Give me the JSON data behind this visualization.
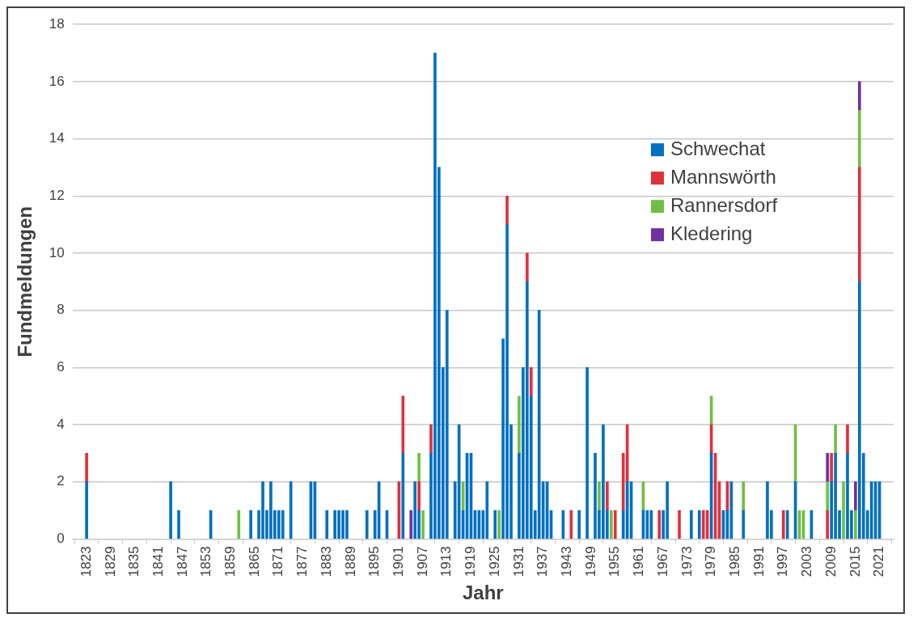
{
  "chart_data": {
    "type": "bar",
    "stacked": true,
    "xlabel": "Jahr",
    "ylabel": "Fundmeldungen",
    "xlim": [
      1822.5,
      2021.5
    ],
    "xticks": [
      1823,
      1829,
      1835,
      1841,
      1847,
      1853,
      1859,
      1865,
      1871,
      1877,
      1883,
      1889,
      1895,
      1901,
      1907,
      1913,
      1919,
      1925,
      1931,
      1937,
      1943,
      1949,
      1955,
      1961,
      1967,
      1973,
      1979,
      1985,
      1991,
      1997,
      2003,
      2009,
      2015,
      2021
    ],
    "ylim": [
      0,
      18
    ],
    "yticks": [
      0,
      2,
      4,
      6,
      8,
      10,
      12,
      14,
      16,
      18
    ],
    "grid": "y",
    "legend": "top right",
    "x": [
      1823,
      1844,
      1846,
      1854,
      1861,
      1864,
      1866,
      1867,
      1868,
      1869,
      1870,
      1871,
      1872,
      1874,
      1879,
      1880,
      1883,
      1885,
      1886,
      1887,
      1888,
      1893,
      1895,
      1896,
      1898,
      1901,
      1902,
      1904,
      1905,
      1906,
      1907,
      1909,
      1910,
      1911,
      1912,
      1913,
      1915,
      1916,
      1917,
      1918,
      1919,
      1920,
      1921,
      1922,
      1923,
      1925,
      1926,
      1927,
      1928,
      1929,
      1931,
      1932,
      1933,
      1934,
      1935,
      1936,
      1937,
      1938,
      1939,
      1942,
      1944,
      1946,
      1948,
      1950,
      1951,
      1952,
      1953,
      1954,
      1955,
      1957,
      1958,
      1959,
      1962,
      1963,
      1964,
      1966,
      1967,
      1968,
      1971,
      1974,
      1976,
      1977,
      1978,
      1979,
      1980,
      1981,
      1982,
      1983,
      1984,
      1987,
      1993,
      1994,
      1997,
      1998,
      2000,
      2001,
      2002,
      2004,
      2008,
      2009,
      2010,
      2011,
      2012,
      2013,
      2014,
      2015,
      2016,
      2017,
      2018,
      2019,
      2020,
      2021
    ],
    "series": [
      {
        "name": "Schwechat",
        "color": "#0070c0",
        "values": [
          2,
          2,
          1,
          1,
          null,
          1,
          1,
          2,
          1,
          2,
          1,
          1,
          1,
          2,
          2,
          2,
          1,
          1,
          1,
          1,
          1,
          1,
          1,
          2,
          1,
          null,
          3,
          null,
          2,
          1,
          null,
          3,
          17,
          13,
          6,
          8,
          2,
          4,
          1,
          3,
          3,
          1,
          1,
          1,
          2,
          1,
          null,
          7,
          11,
          4,
          3,
          6,
          9,
          5,
          1,
          8,
          2,
          2,
          1,
          1,
          null,
          1,
          6,
          3,
          1,
          4,
          1,
          null,
          null,
          1,
          2,
          2,
          1,
          1,
          1,
          null,
          1,
          2,
          null,
          1,
          1,
          null,
          null,
          3,
          null,
          null,
          1,
          1,
          2,
          1,
          2,
          1,
          null,
          1,
          2,
          null,
          null,
          1,
          null,
          2,
          3,
          1,
          null,
          3,
          1,
          null,
          9,
          3,
          1,
          2,
          2,
          2
        ]
      },
      {
        "name": "Mannswörth",
        "color": "#e0303c",
        "values": [
          1,
          null,
          null,
          null,
          null,
          null,
          null,
          null,
          null,
          null,
          null,
          null,
          null,
          null,
          null,
          null,
          null,
          null,
          null,
          null,
          null,
          null,
          null,
          null,
          null,
          2,
          2,
          null,
          null,
          1,
          null,
          1,
          null,
          null,
          null,
          null,
          null,
          null,
          null,
          null,
          null,
          null,
          null,
          null,
          null,
          null,
          null,
          null,
          1,
          null,
          null,
          null,
          1,
          1,
          null,
          null,
          null,
          null,
          null,
          null,
          1,
          null,
          null,
          null,
          null,
          null,
          1,
          null,
          1,
          2,
          2,
          null,
          null,
          null,
          null,
          1,
          null,
          null,
          1,
          null,
          null,
          1,
          1,
          1,
          3,
          2,
          null,
          1,
          null,
          null,
          null,
          null,
          1,
          null,
          null,
          null,
          null,
          null,
          1,
          1,
          null,
          null,
          null,
          1,
          null,
          null,
          4,
          null,
          null,
          null,
          null,
          null
        ]
      },
      {
        "name": "Rannersdorf",
        "color": "#70bf44",
        "values": [
          null,
          null,
          null,
          null,
          1,
          null,
          null,
          null,
          null,
          null,
          null,
          null,
          null,
          null,
          null,
          null,
          null,
          null,
          null,
          null,
          null,
          null,
          null,
          null,
          null,
          null,
          null,
          null,
          null,
          1,
          1,
          null,
          null,
          null,
          null,
          null,
          null,
          null,
          1,
          null,
          null,
          null,
          null,
          null,
          null,
          null,
          1,
          null,
          null,
          null,
          2,
          null,
          null,
          null,
          null,
          null,
          null,
          null,
          null,
          null,
          null,
          null,
          null,
          null,
          1,
          null,
          null,
          1,
          null,
          null,
          null,
          null,
          1,
          null,
          null,
          null,
          null,
          null,
          null,
          null,
          null,
          null,
          null,
          1,
          null,
          null,
          null,
          null,
          null,
          1,
          null,
          null,
          null,
          null,
          2,
          1,
          1,
          null,
          1,
          null,
          1,
          null,
          2,
          null,
          null,
          1,
          2,
          null,
          null,
          null,
          null,
          null
        ]
      },
      {
        "name": "Kledering",
        "color": "#7030a0",
        "values": [
          null,
          null,
          null,
          null,
          null,
          null,
          null,
          null,
          null,
          null,
          null,
          null,
          null,
          null,
          null,
          null,
          null,
          null,
          null,
          null,
          null,
          null,
          null,
          null,
          null,
          null,
          null,
          1,
          null,
          null,
          null,
          null,
          null,
          null,
          null,
          null,
          null,
          null,
          null,
          null,
          null,
          null,
          null,
          null,
          null,
          null,
          null,
          null,
          null,
          null,
          null,
          null,
          null,
          null,
          null,
          null,
          null,
          null,
          null,
          null,
          null,
          null,
          null,
          null,
          null,
          null,
          null,
          null,
          null,
          null,
          null,
          null,
          null,
          null,
          null,
          null,
          null,
          null,
          null,
          null,
          null,
          null,
          null,
          null,
          null,
          null,
          null,
          null,
          null,
          null,
          null,
          null,
          null,
          null,
          null,
          null,
          null,
          null,
          1,
          null,
          null,
          null,
          null,
          null,
          null,
          1,
          1,
          null,
          null,
          null,
          null,
          null
        ]
      }
    ]
  }
}
